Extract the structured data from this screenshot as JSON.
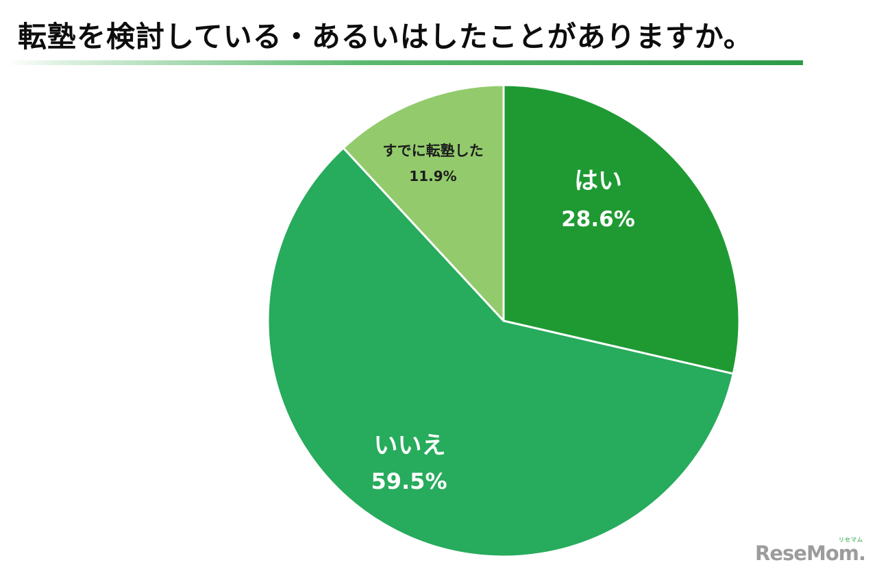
{
  "title": "転塾を検討している・あるいはしたことがありますか。",
  "chart_data": {
    "type": "pie",
    "title": "転塾を検討している・あるいはしたことがありますか。",
    "start_angle_deg": 0,
    "direction": "clockwise",
    "stroke_color": "#ffffff",
    "slices": [
      {
        "label": "はい",
        "value": 28.6,
        "pct_label": "28.6%",
        "color": "#1f9a33",
        "text_color": "#ffffff"
      },
      {
        "label": "いいえ",
        "value": 59.5,
        "pct_label": "59.5%",
        "color": "#27ab5c",
        "text_color": "#ffffff"
      },
      {
        "label": "すでに転塾した",
        "value": 11.9,
        "pct_label": "11.9%",
        "color": "#93cb6c",
        "text_color": "#1c1c1c"
      }
    ]
  },
  "underline_colors": {
    "start": "#ffffff",
    "end": "#2c9b46"
  },
  "logo": {
    "furigana": "リセマム",
    "text": "ReseMom",
    "dot": "."
  }
}
